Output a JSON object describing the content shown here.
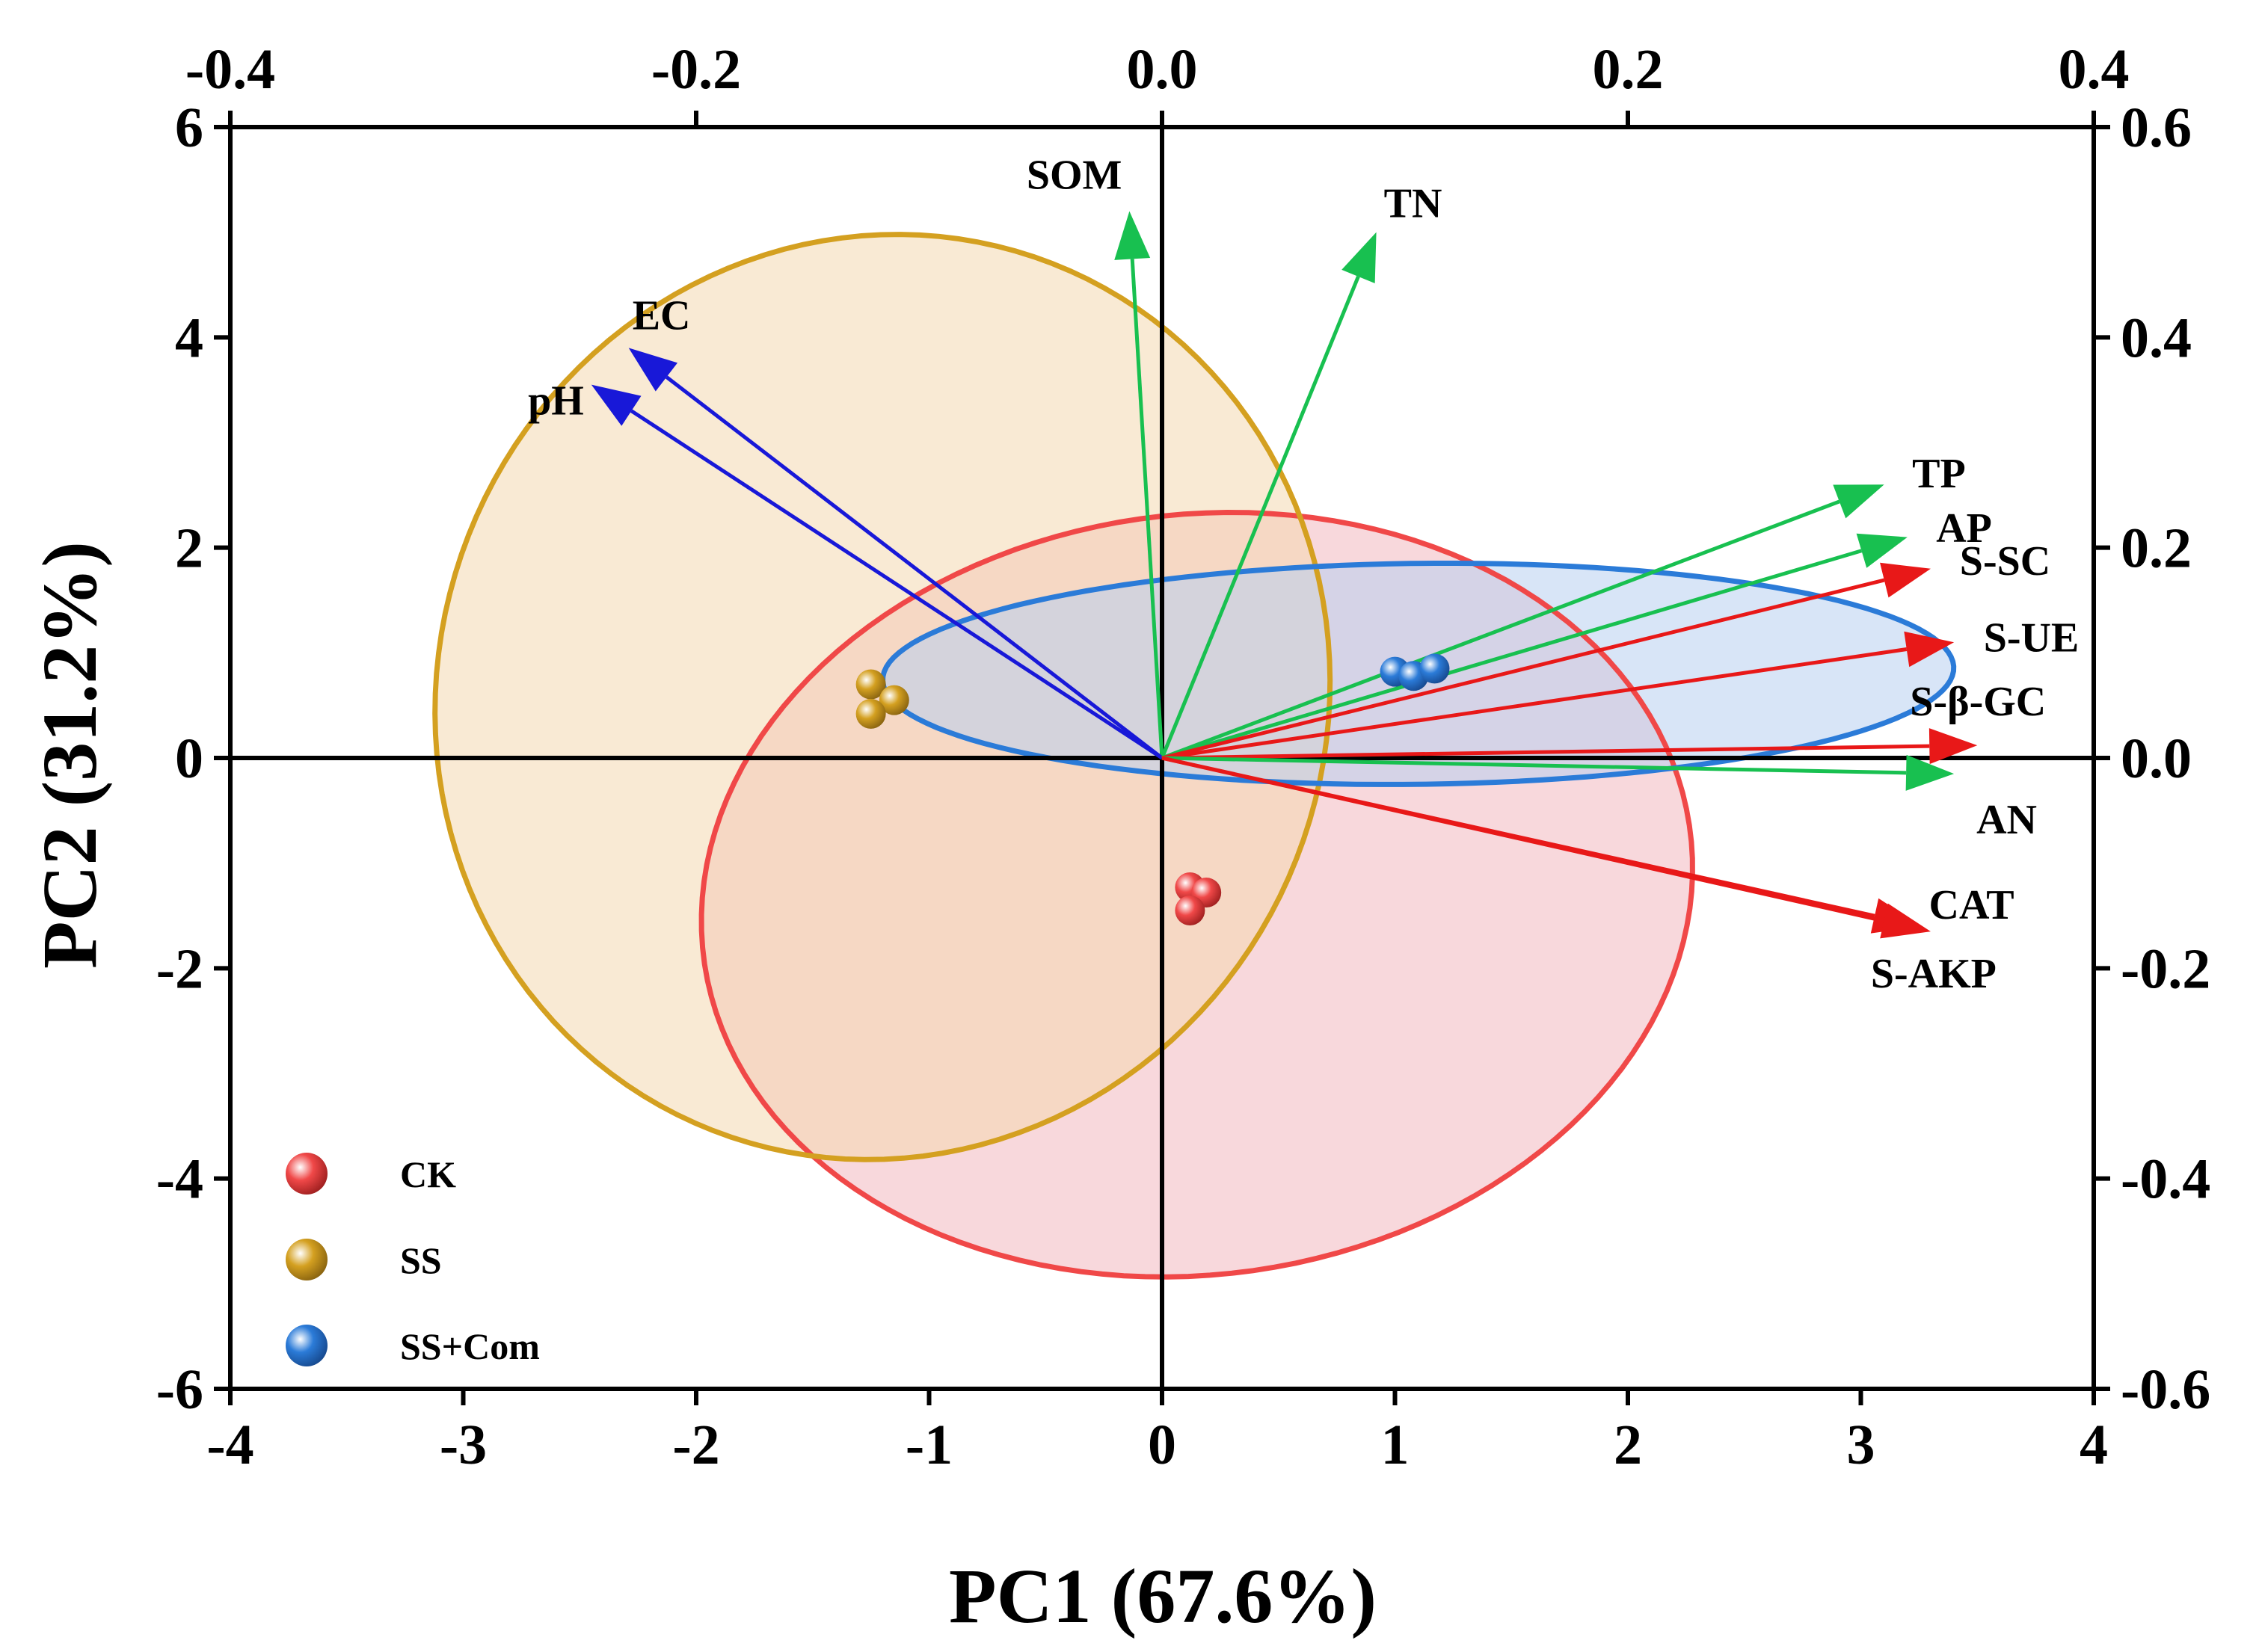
{
  "chart_data": {
    "type": "scatter",
    "subtype": "pca-biplot",
    "title": "",
    "xlabel": "PC1 (67.6%)",
    "ylabel": "PC2 (31.2%)",
    "xlim": [
      -4,
      4
    ],
    "ylim": [
      -6,
      6
    ],
    "x_ticks": [
      "-4",
      "-3",
      "-2",
      "-1",
      "0",
      "1",
      "2",
      "3",
      "4"
    ],
    "y_ticks": [
      "-6",
      "-4",
      "-2",
      "0",
      "2",
      "4",
      "6"
    ],
    "top_axis": {
      "lim": [
        -0.4,
        0.4
      ],
      "ticks": [
        "-0.4",
        "-0.2",
        "0.0",
        "0.2",
        "0.4"
      ]
    },
    "right_axis": {
      "lim": [
        -0.6,
        0.6
      ],
      "ticks": [
        "-0.6",
        "-0.4",
        "-0.2",
        "0.0",
        "0.2",
        "0.4",
        "0.6"
      ]
    },
    "legend_position": "bottom-left",
    "groups": [
      {
        "name": "CK",
        "color": "#f04848",
        "fill": "#f2b8c0",
        "points": [
          [
            0.12,
            -1.23
          ],
          [
            0.19,
            -1.28
          ],
          [
            0.12,
            -1.45
          ]
        ],
        "ellipse": {
          "center": [
            0.15,
            -1.3
          ],
          "semi_major": 3.64,
          "semi_minor": 2.12,
          "angle_deg": 86.5
        }
      },
      {
        "name": "SS",
        "color": "#d4a020",
        "fill": "#f4d8b0",
        "points": [
          [
            -1.25,
            0.7
          ],
          [
            -1.15,
            0.55
          ],
          [
            -1.25,
            0.42
          ]
        ],
        "ellipse": {
          "center": [
            -1.2,
            0.58
          ],
          "semi_major": 4.4,
          "semi_minor": 1.92,
          "angle_deg": 89
        }
      },
      {
        "name": "SS+Com",
        "color": "#2b7bd8",
        "fill": "#b8cff0",
        "points": [
          [
            1.0,
            0.82
          ],
          [
            1.08,
            0.78
          ],
          [
            1.17,
            0.85
          ]
        ],
        "ellipse": {
          "center": [
            1.1,
            0.8
          ],
          "semi_major": 2.3,
          "semi_minor": 1.05,
          "angle_deg": 1.8
        }
      }
    ],
    "loadings": [
      {
        "name": "SOM",
        "x": -0.014,
        "y": 0.52,
        "color": "#18c050"
      },
      {
        "name": "TN",
        "x": 0.092,
        "y": 0.5,
        "color": "#18c050"
      },
      {
        "name": "EC",
        "x": -0.229,
        "y": 0.39,
        "color": "#1818d8"
      },
      {
        "name": "pH",
        "x": -0.245,
        "y": 0.355,
        "color": "#1818d8"
      },
      {
        "name": "TP",
        "x": 0.31,
        "y": 0.26,
        "color": "#18c050"
      },
      {
        "name": "AP",
        "x": 0.32,
        "y": 0.21,
        "color": "#18c050"
      },
      {
        "name": "S-SC",
        "x": 0.33,
        "y": 0.18,
        "color": "#e81818"
      },
      {
        "name": "S-UE",
        "x": 0.34,
        "y": 0.11,
        "color": "#e81818"
      },
      {
        "name": "S-β-GC",
        "x": 0.35,
        "y": 0.012,
        "color": "#e81818"
      },
      {
        "name": "AN",
        "x": 0.34,
        "y": -0.015,
        "color": "#18c050"
      },
      {
        "name": "CAT",
        "x": 0.326,
        "y": -0.16,
        "color": "#e81818"
      },
      {
        "name": "S-AKP",
        "x": 0.33,
        "y": -0.165,
        "color": "#e81818"
      }
    ]
  }
}
